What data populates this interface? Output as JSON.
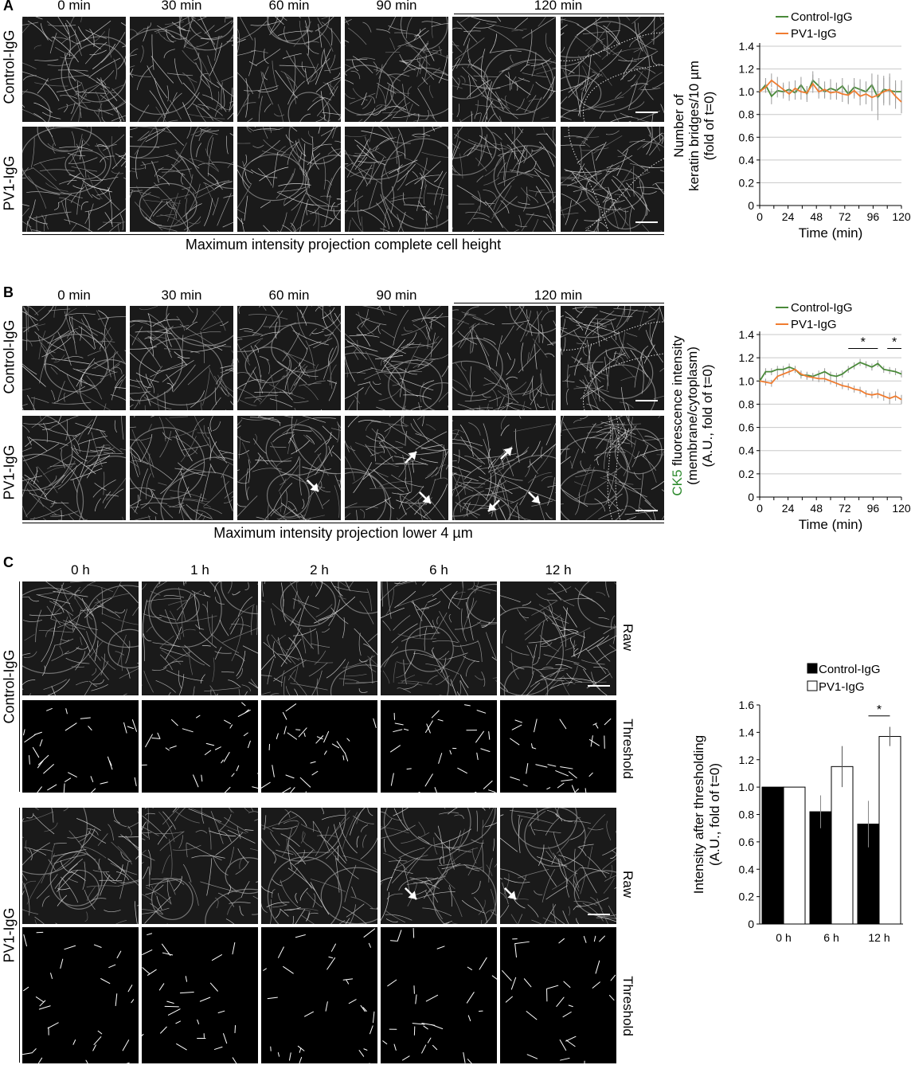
{
  "panel_A": {
    "letter": "A",
    "time_labels": [
      "0 min",
      "30 min",
      "60 min",
      "90 min",
      "120 min"
    ],
    "row_labels": [
      "Control-IgG",
      "PV1-IgG"
    ],
    "caption": "Maximum intensity projection complete cell height"
  },
  "panel_B": {
    "letter": "B",
    "time_labels": [
      "0 min",
      "30 min",
      "60 min",
      "90 min",
      "120 min"
    ],
    "row_labels": [
      "Control-IgG",
      "PV1-IgG"
    ],
    "caption": "Maximum intensity projection lower 4 µm"
  },
  "panel_C": {
    "letter": "C",
    "time_labels": [
      "0 h",
      "1 h",
      "2 h",
      "6 h",
      "12 h"
    ],
    "row_labels": [
      "Control-IgG",
      "PV1-IgG"
    ],
    "side_labels": [
      "Raw",
      "Threshold",
      "Raw",
      "Threshold"
    ]
  },
  "colors": {
    "control": "#4a8a3a",
    "pv1": "#f07c30",
    "ck5_green": "#2e8b2e",
    "bar_control": "#000000",
    "bar_pv1": "#ffffff"
  },
  "chart_data": [
    {
      "id": "chart-A",
      "type": "line",
      "ylabel_lines": [
        "Number of",
        "keratin bridges/10 µm",
        "(fold of t=0)"
      ],
      "xlabel": "Time (min)",
      "xlim": [
        0,
        120
      ],
      "ylim": [
        0,
        1.4
      ],
      "xticks": [
        0,
        24,
        48,
        72,
        96,
        120
      ],
      "yticks": [
        "0",
        "0.2",
        "0.4",
        "0.6",
        "0.8",
        "1.0",
        "1.2",
        "1.4"
      ],
      "legend": "top",
      "grid": true,
      "x": [
        0,
        5,
        10,
        15,
        20,
        25,
        30,
        35,
        40,
        45,
        50,
        55,
        60,
        65,
        70,
        75,
        80,
        85,
        90,
        95,
        100,
        105,
        110,
        115,
        120
      ],
      "series": [
        {
          "name": "Control-IgG",
          "color": "#4a8a3a",
          "values": [
            1.0,
            1.06,
            0.96,
            1.01,
            1.0,
            1.02,
            0.99,
            1.06,
            0.98,
            1.1,
            1.05,
            1.0,
            1.03,
            1.01,
            1.05,
            0.98,
            1.04,
            1.02,
            1.0,
            1.06,
            0.95,
            1.02,
            1.01,
            1.0,
            1.0
          ],
          "err": [
            0,
            0.06,
            0.07,
            0.06,
            0.06,
            0.07,
            0.06,
            0.07,
            0.07,
            0.08,
            0.07,
            0.06,
            0.08,
            0.07,
            0.07,
            0.08,
            0.08,
            0.09,
            0.09,
            0.1,
            0.2,
            0.12,
            0.12,
            0.1,
            0.1
          ]
        },
        {
          "name": "PV1-IgG",
          "color": "#f07c30",
          "values": [
            1.0,
            1.04,
            1.1,
            1.06,
            1.02,
            0.98,
            1.03,
            1.0,
            0.99,
            1.07,
            1.0,
            1.02,
            0.99,
            1.0,
            0.98,
            0.97,
            1.01,
            0.96,
            0.98,
            0.95,
            0.97,
            1.0,
            1.02,
            0.96,
            0.91
          ],
          "err": [
            0,
            0.05,
            0.06,
            0.07,
            0.06,
            0.06,
            0.07,
            0.07,
            0.06,
            0.08,
            0.06,
            0.07,
            0.06,
            0.07,
            0.07,
            0.08,
            0.07,
            0.08,
            0.09,
            0.12,
            0.13,
            0.12,
            0.14,
            0.11,
            0.1
          ]
        }
      ]
    },
    {
      "id": "chart-B",
      "type": "line",
      "ylabel_first_word": "CK5",
      "ylabel_lines": [
        " fluorescence intensity",
        "(membrane/cytoplasm)",
        "(A.U., fold of t=0)"
      ],
      "xlabel": "Time (min)",
      "xlim": [
        0,
        120
      ],
      "ylim": [
        0,
        1.4
      ],
      "xticks": [
        0,
        24,
        48,
        72,
        96,
        120
      ],
      "yticks": [
        "0",
        "0.2",
        "0.4",
        "0.6",
        "0.8",
        "1.0",
        "1.2",
        "1.4"
      ],
      "legend": "top",
      "grid": true,
      "significance": [
        {
          "label": "*",
          "x1": 75,
          "x2": 100,
          "y": 1.28
        },
        {
          "label": "*",
          "x1": 108,
          "x2": 120,
          "y": 1.28
        }
      ],
      "x": [
        0,
        5,
        10,
        15,
        20,
        25,
        30,
        35,
        40,
        45,
        50,
        55,
        60,
        65,
        70,
        75,
        80,
        85,
        90,
        95,
        100,
        105,
        110,
        115,
        120
      ],
      "series": [
        {
          "name": "Control-IgG",
          "color": "#4a8a3a",
          "values": [
            1.0,
            1.08,
            1.08,
            1.1,
            1.1,
            1.12,
            1.1,
            1.05,
            1.05,
            1.04,
            1.06,
            1.08,
            1.05,
            1.04,
            1.06,
            1.1,
            1.13,
            1.16,
            1.14,
            1.12,
            1.15,
            1.1,
            1.09,
            1.08,
            1.06
          ],
          "err": [
            0,
            0.03,
            0.03,
            0.03,
            0.03,
            0.03,
            0.03,
            0.03,
            0.03,
            0.03,
            0.03,
            0.03,
            0.03,
            0.03,
            0.03,
            0.03,
            0.03,
            0.03,
            0.03,
            0.03,
            0.03,
            0.03,
            0.03,
            0.03,
            0.03
          ]
        },
        {
          "name": "PV1-IgG",
          "color": "#f07c30",
          "values": [
            1.0,
            0.99,
            0.98,
            1.04,
            1.06,
            1.08,
            1.1,
            1.06,
            1.04,
            1.03,
            1.02,
            1.02,
            1.0,
            0.98,
            0.96,
            0.95,
            0.93,
            0.92,
            0.89,
            0.88,
            0.89,
            0.87,
            0.85,
            0.87,
            0.84
          ],
          "err": [
            0,
            0.03,
            0.03,
            0.03,
            0.03,
            0.03,
            0.03,
            0.03,
            0.03,
            0.03,
            0.03,
            0.03,
            0.03,
            0.03,
            0.03,
            0.03,
            0.03,
            0.03,
            0.03,
            0.03,
            0.04,
            0.04,
            0.05,
            0.04,
            0.04
          ]
        }
      ]
    },
    {
      "id": "chart-C",
      "type": "bar",
      "ylabel_lines": [
        "Intensity after thresholding",
        "(A.U., fold of t=0)"
      ],
      "categories": [
        "0 h",
        "6 h",
        "12 h"
      ],
      "ylim": [
        0,
        1.6
      ],
      "yticks": [
        "0",
        "0.2",
        "0.4",
        "0.6",
        "0.8",
        "1.0",
        "1.2",
        "1.4",
        "1.6"
      ],
      "legend": "top",
      "grid": false,
      "significance": [
        {
          "label": "*",
          "category": "12 h",
          "y": 1.52
        }
      ],
      "series": [
        {
          "name": "Control-IgG",
          "color": "#000000",
          "values": [
            1.0,
            0.82,
            0.73
          ],
          "err": [
            0,
            0.12,
            0.17
          ]
        },
        {
          "name": "PV1-IgG",
          "color": "#ffffff",
          "values": [
            1.0,
            1.15,
            1.37
          ],
          "err": [
            0,
            0.15,
            0.07
          ]
        }
      ]
    }
  ]
}
